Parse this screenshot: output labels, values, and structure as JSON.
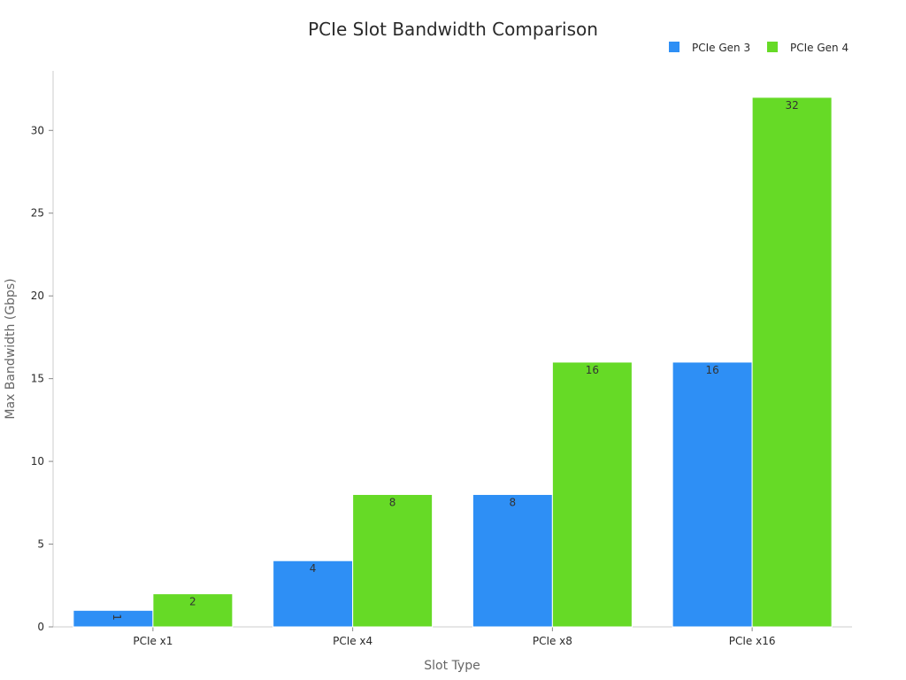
{
  "chart_data": {
    "type": "bar",
    "title": "PCIe Slot Bandwidth Comparison",
    "xlabel": "Slot Type",
    "ylabel": "Max Bandwidth (Gbps)",
    "categories": [
      "PCIe x1",
      "PCIe x4",
      "PCIe x8",
      "PCIe x16"
    ],
    "series": [
      {
        "name": "PCIe Gen 3",
        "color": "#2e8ff5",
        "values": [
          1,
          4,
          8,
          16
        ]
      },
      {
        "name": "PCIe Gen 4",
        "color": "#66da26",
        "values": [
          2,
          8,
          16,
          32
        ]
      }
    ],
    "ylim": [
      0,
      33.6
    ],
    "yticks": [
      0,
      5,
      10,
      15,
      20,
      25,
      30
    ],
    "legend_position": "top-right",
    "grid": false,
    "data_labels": true
  }
}
